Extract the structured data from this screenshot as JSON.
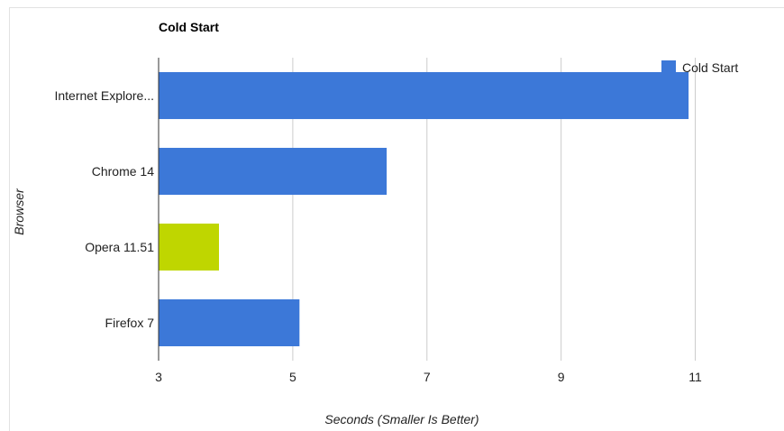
{
  "chart_data": {
    "type": "bar",
    "orientation": "horizontal",
    "title": "Cold Start",
    "xlabel": "Seconds (Smaller Is Better)",
    "ylabel": "Browser",
    "categories": [
      "Internet Explore...",
      "Chrome 14",
      "Opera 11.51",
      "Firefox 7"
    ],
    "series": [
      {
        "name": "Cold Start",
        "values": [
          10.9,
          6.4,
          3.9,
          5.1
        ]
      }
    ],
    "xlim": [
      3,
      12
    ],
    "xticks": [
      "3",
      "5",
      "7",
      "9",
      "11"
    ],
    "tick_values": [
      3,
      5,
      7,
      9,
      11
    ],
    "bar_colors": [
      "#3c78d8",
      "#3c78d8",
      "#bfd600",
      "#3c78d8"
    ],
    "series_color": "#3c78d8",
    "legend_position": "right",
    "grid": true
  }
}
